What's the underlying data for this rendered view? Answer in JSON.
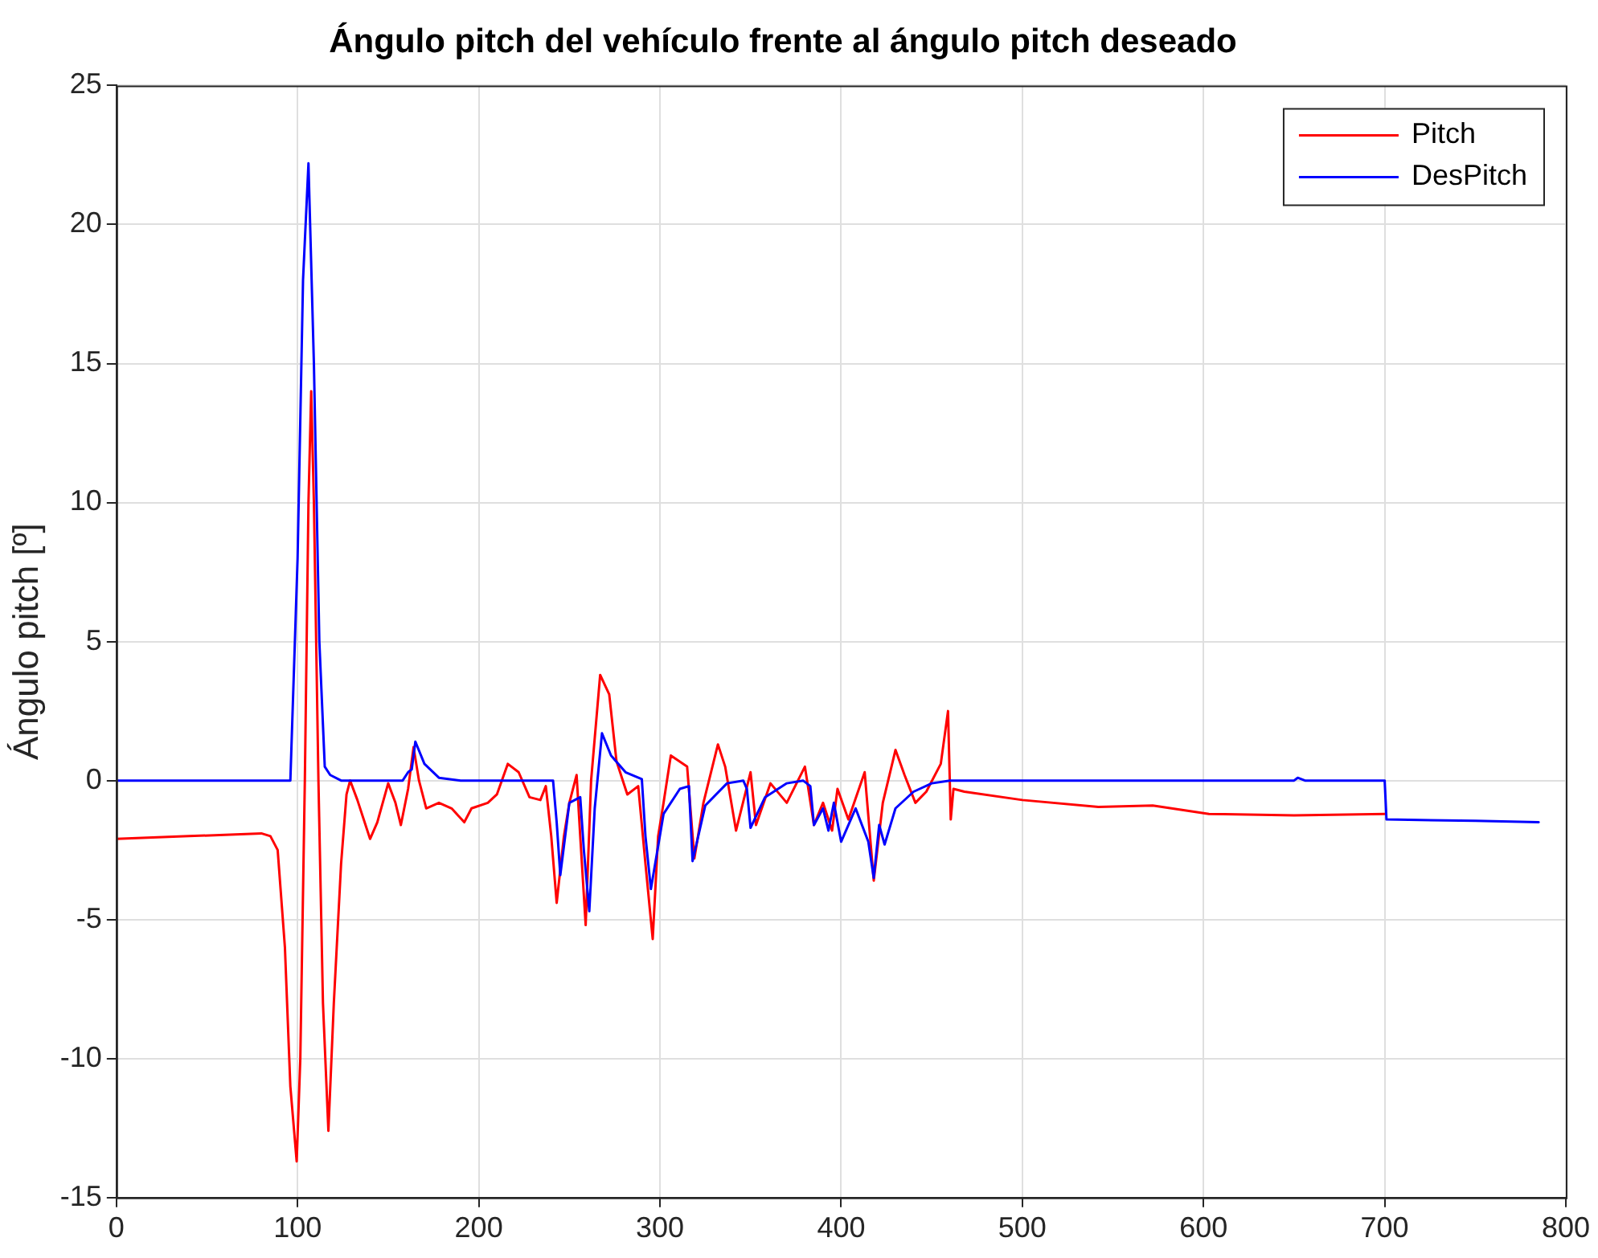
{
  "chart_data": {
    "type": "line",
    "title": "Ángulo pitch del vehículo frente al ángulo pitch deseado",
    "ylabel": "Ángulo pitch [º]",
    "xlim": [
      0,
      800
    ],
    "xticks": [
      0,
      100,
      200,
      300,
      400,
      500,
      600,
      700,
      800
    ],
    "ylim": [
      -15,
      25
    ],
    "yticks": [
      -15,
      -10,
      -5,
      0,
      5,
      10,
      15,
      20,
      25
    ],
    "grid": true,
    "legend": "top right",
    "marker": "none",
    "line_style": "solid",
    "series": [
      {
        "name": "Pitch",
        "color": "#ff0000",
        "x": [
          0,
          40,
          80,
          85,
          89,
          93,
          96,
          99.5,
          101.5,
          104,
          106,
          107.5,
          109,
          111.5,
          114,
          117,
          120,
          124,
          127,
          129,
          133,
          140,
          144,
          150,
          154,
          157,
          161,
          164,
          167,
          171,
          178,
          185,
          192,
          196,
          205,
          210,
          216,
          222,
          228,
          234,
          237,
          240,
          243,
          247,
          250,
          254,
          256,
          259,
          262,
          267,
          272,
          276,
          282,
          288,
          292,
          296,
          299,
          302,
          306,
          315,
          319,
          324,
          332,
          336,
          342,
          350,
          353,
          361,
          370,
          380,
          385,
          390,
          395,
          398,
          404,
          413,
          418,
          423,
          430,
          435,
          441,
          447,
          455,
          459,
          460.5,
          462,
          468,
          500,
          542,
          572,
          603,
          650,
          700
        ],
        "values": [
          -2.1,
          -2.0,
          -1.9,
          -2.0,
          -2.5,
          -6,
          -11,
          -13.7,
          -10,
          0,
          10,
          14.0,
          10,
          0,
          -8,
          -12.6,
          -8,
          -3,
          -0.5,
          0,
          -0.7,
          -2.1,
          -1.5,
          -0.1,
          -0.8,
          -1.6,
          -0.3,
          1.2,
          0,
          -1.0,
          -0.8,
          -1.0,
          -1.5,
          -1.0,
          -0.8,
          -0.5,
          0.6,
          0.3,
          -0.6,
          -0.7,
          -0.2,
          -2,
          -4.4,
          -2,
          -0.8,
          0.2,
          -2,
          -5.2,
          0,
          3.8,
          3.1,
          0.7,
          -0.5,
          -0.2,
          -3,
          -5.7,
          -2,
          -0.8,
          0.9,
          0.5,
          -2.8,
          -0.8,
          1.3,
          0.5,
          -1.8,
          0.3,
          -1.6,
          -0.1,
          -0.8,
          0.5,
          -1.6,
          -0.8,
          -1.8,
          -0.3,
          -1.4,
          0.3,
          -3.6,
          -0.8,
          1.1,
          0.2,
          -0.8,
          -0.4,
          0.6,
          2.5,
          -1.4,
          -0.3,
          -0.4,
          -0.7,
          -0.95,
          -0.9,
          -1.2,
          -1.25,
          -1.2
        ]
      },
      {
        "name": "DesPitch",
        "color": "#0000ff",
        "x": [
          0,
          96,
          100,
          103,
          106,
          109,
          112,
          115,
          118,
          124,
          158,
          161,
          163,
          165,
          170,
          178,
          190,
          241,
          243,
          245,
          250,
          256,
          258,
          261,
          264,
          268,
          273,
          281,
          290,
          292,
          295,
          302,
          311,
          316,
          318,
          325,
          337,
          346,
          348,
          350,
          358,
          370,
          379,
          383,
          385,
          390,
          393,
          396,
          400,
          408,
          415,
          418,
          421,
          424,
          430,
          440,
          450,
          460,
          600,
          650,
          652,
          656,
          700,
          701,
          750,
          785
        ],
        "values": [
          0,
          0,
          8,
          18,
          22.2,
          15,
          5,
          0.5,
          0.2,
          0,
          0,
          0.3,
          0.4,
          1.4,
          0.6,
          0.1,
          0,
          0,
          -1.5,
          -3.4,
          -0.8,
          -0.6,
          -2.5,
          -4.7,
          -1,
          1.7,
          0.9,
          0.3,
          0.05,
          -2,
          -3.9,
          -1.2,
          -0.3,
          -0.2,
          -2.9,
          -0.9,
          -0.1,
          0,
          -0.3,
          -1.7,
          -0.6,
          -0.1,
          0,
          -0.2,
          -1.6,
          -1.0,
          -1.8,
          -0.8,
          -2.2,
          -1.0,
          -2.2,
          -3.5,
          -1.6,
          -2.3,
          -1.0,
          -0.4,
          -0.1,
          0,
          0,
          0,
          0.1,
          0,
          0,
          -1.4,
          -1.45,
          -1.5
        ]
      }
    ]
  }
}
